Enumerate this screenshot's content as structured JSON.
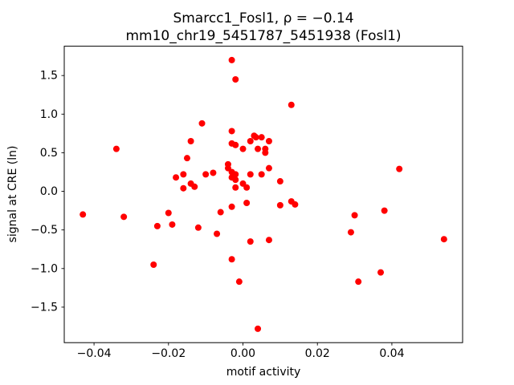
{
  "chart_data": {
    "type": "scatter",
    "title": "Smarcc1_Fosl1, ρ = −0.14",
    "subtitle": "mm10_chr19_5451787_5451938 (Fosl1)",
    "xlabel": "motif activity",
    "ylabel": "signal at CRE (ln)",
    "xlim": [
      -0.048,
      0.059
    ],
    "ylim": [
      -1.96,
      1.88
    ],
    "grid": false,
    "legend": "none",
    "marker_color": "#ff0000",
    "marker_radius": 4,
    "xticks": [
      {
        "value": -0.04,
        "label": "−0.04"
      },
      {
        "value": -0.02,
        "label": "−0.02"
      },
      {
        "value": 0.0,
        "label": "0.00"
      },
      {
        "value": 0.02,
        "label": "0.02"
      },
      {
        "value": 0.04,
        "label": "0.04"
      }
    ],
    "yticks": [
      {
        "value": -1.5,
        "label": "−1.5"
      },
      {
        "value": -1.0,
        "label": "−1.0"
      },
      {
        "value": -0.5,
        "label": "−0.5"
      },
      {
        "value": 0.0,
        "label": "0.0"
      },
      {
        "value": 0.5,
        "label": "0.5"
      },
      {
        "value": 1.0,
        "label": "1.0"
      },
      {
        "value": 1.5,
        "label": "1.5"
      }
    ],
    "points": [
      [
        -0.043,
        -0.3
      ],
      [
        -0.034,
        0.55
      ],
      [
        -0.032,
        -0.33
      ],
      [
        -0.024,
        -0.95
      ],
      [
        -0.023,
        -0.45
      ],
      [
        -0.02,
        -0.28
      ],
      [
        -0.018,
        0.18
      ],
      [
        -0.019,
        -0.43
      ],
      [
        -0.016,
        0.22
      ],
      [
        -0.016,
        0.04
      ],
      [
        -0.015,
        0.43
      ],
      [
        -0.014,
        0.65
      ],
      [
        -0.014,
        0.1
      ],
      [
        -0.013,
        0.06
      ],
      [
        -0.012,
        -0.47
      ],
      [
        -0.011,
        0.88
      ],
      [
        -0.01,
        0.22
      ],
      [
        -0.008,
        0.24
      ],
      [
        -0.007,
        -0.55
      ],
      [
        -0.006,
        -0.27
      ],
      [
        -0.004,
        0.35
      ],
      [
        -0.004,
        0.3
      ],
      [
        -0.003,
        1.7
      ],
      [
        -0.003,
        0.78
      ],
      [
        -0.003,
        0.62
      ],
      [
        -0.003,
        0.25
      ],
      [
        -0.003,
        0.18
      ],
      [
        -0.002,
        0.15
      ],
      [
        -0.003,
        -0.2
      ],
      [
        -0.003,
        -0.88
      ],
      [
        -0.002,
        1.45
      ],
      [
        -0.002,
        0.6
      ],
      [
        -0.002,
        0.22
      ],
      [
        -0.002,
        0.05
      ],
      [
        -0.001,
        -1.17
      ],
      [
        0.0,
        0.55
      ],
      [
        0.0,
        0.1
      ],
      [
        0.001,
        0.05
      ],
      [
        0.001,
        -0.15
      ],
      [
        0.002,
        0.65
      ],
      [
        0.002,
        0.22
      ],
      [
        0.002,
        -0.65
      ],
      [
        0.003,
        0.72
      ],
      [
        0.0035,
        0.7
      ],
      [
        0.004,
        0.55
      ],
      [
        0.004,
        -1.78
      ],
      [
        0.005,
        0.7
      ],
      [
        0.005,
        0.22
      ],
      [
        0.006,
        0.55
      ],
      [
        0.006,
        0.5
      ],
      [
        0.007,
        0.65
      ],
      [
        0.007,
        0.3
      ],
      [
        0.007,
        -0.63
      ],
      [
        0.01,
        0.13
      ],
      [
        0.01,
        -0.18
      ],
      [
        0.013,
        1.12
      ],
      [
        0.013,
        -0.13
      ],
      [
        0.014,
        -0.17
      ],
      [
        0.029,
        -0.53
      ],
      [
        0.03,
        -0.31
      ],
      [
        0.031,
        -1.17
      ],
      [
        0.037,
        -1.05
      ],
      [
        0.038,
        -0.25
      ],
      [
        0.042,
        0.29
      ],
      [
        0.054,
        -0.62
      ]
    ]
  }
}
